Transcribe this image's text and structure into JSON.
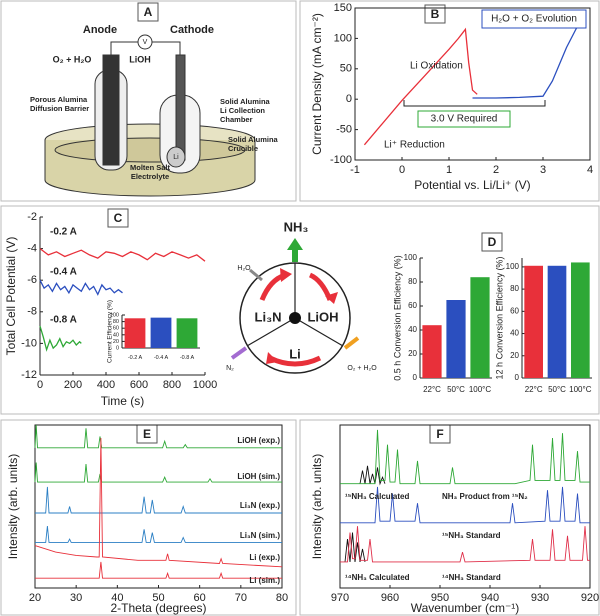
{
  "panel_labels": [
    "A",
    "B",
    "C",
    "D",
    "E",
    "F"
  ],
  "diagram_a": {
    "anode": "Anode",
    "cathode": "Cathode",
    "meter": "V",
    "gas_in": "O₂ + H₂O",
    "product": "LiOH",
    "labels": [
      [
        "Porous Alumina",
        "Diffusion Barrier"
      ],
      [
        "Solid Alumina",
        "Li Collection",
        "Chamber"
      ],
      [
        "Solid Alumina",
        "Crucible"
      ],
      [
        "Molten Salt",
        "Electrolyte"
      ]
    ],
    "li": "Li"
  },
  "cycle": {
    "ammonia": "NH₃",
    "water": "H₂O",
    "nitride": "Li₃N",
    "hydroxide": "LiOH",
    "lithium": "Li",
    "nitrogen": "N₂",
    "evolution": "O₂ + H₂O"
  },
  "chart_data": [
    {
      "type": "line",
      "xlabel": "Potential vs. Li/Li⁺ (V)",
      "ylabel": "Current Density (mA cm⁻²)",
      "xlim": [
        -1,
        4
      ],
      "xticks": [
        -1,
        0,
        1,
        2,
        3,
        4
      ],
      "ylim": [
        -100,
        150
      ],
      "yticks": [
        -100,
        -50,
        0,
        50,
        100,
        150
      ],
      "annotations": [
        "Li Oxidation",
        "H₂O + O₂ Evolution",
        "3.0 V Required",
        "Li⁺ Reduction"
      ],
      "series": [
        {
          "color": "#e8303a",
          "x": [
            -0.8,
            0,
            0.5,
            1.0,
            1.2,
            1.3,
            1.35,
            1.42,
            1.5,
            1.6
          ],
          "values": [
            -75,
            -2,
            40,
            82,
            100,
            110,
            115,
            60,
            15,
            8
          ]
        },
        {
          "color": "#2b4fbf",
          "x": [
            1.5,
            2.0,
            2.5,
            3.0,
            3.2,
            3.5,
            3.9
          ],
          "values": [
            2,
            2,
            3,
            5,
            30,
            85,
            145
          ]
        }
      ]
    },
    {
      "type": "line",
      "xlabel": "Time (s)",
      "ylabel": "Total Cell Potential (V)",
      "xlim": [
        0,
        1000
      ],
      "xticks": [
        0,
        200,
        400,
        600,
        800,
        1000
      ],
      "ylim": [
        -12,
        -2
      ],
      "yticks": [
        -12,
        -10,
        -8,
        -6,
        -4,
        -2
      ],
      "series": [
        {
          "name": "-0.2 A",
          "color": "#e8303a",
          "x": [
            0,
            50,
            100,
            150,
            200,
            250,
            300,
            350,
            400,
            450,
            500,
            550,
            600,
            650,
            700,
            750,
            800,
            850,
            900,
            950,
            1000
          ],
          "values": [
            -4.0,
            -4.4,
            -4.2,
            -4.5,
            -4.3,
            -4.1,
            -4.4,
            -4.6,
            -4.2,
            -4.3,
            -4.5,
            -4.2,
            -4.4,
            -4.7,
            -4.3,
            -4.5,
            -4.2,
            -4.4,
            -4.6,
            -4.4,
            -4.8
          ]
        },
        {
          "name": "-0.4 A",
          "color": "#2b4fbf",
          "x": [
            0,
            25,
            50,
            75,
            100,
            125,
            150,
            175,
            200,
            225,
            250,
            275,
            300,
            325,
            350,
            375,
            400,
            425,
            450,
            475,
            500
          ],
          "values": [
            -6.0,
            -6.5,
            -6.3,
            -6.7,
            -6.2,
            -6.6,
            -6.4,
            -6.8,
            -6.3,
            -6.5,
            -6.7,
            -6.2,
            -6.6,
            -6.4,
            -6.9,
            -6.3,
            -6.6,
            -6.5,
            -6.8,
            -6.6,
            -6.8
          ]
        },
        {
          "name": "-0.8 A",
          "color": "#2ea836",
          "x": [
            0,
            20,
            40,
            60,
            80,
            100,
            120,
            140,
            160,
            180,
            200,
            220,
            240,
            250
          ],
          "values": [
            -8.9,
            -9.6,
            -10.4,
            -9.8,
            -10.3,
            -10.1,
            -9.7,
            -10.2,
            -9.9,
            -10.0,
            -9.8,
            -10.1,
            -9.9,
            -10.0
          ]
        }
      ]
    },
    {
      "type": "bar",
      "ylabel": "Current Efficiency (%)",
      "categories": [
        "-0.2 A",
        "-0.4 A",
        "-0.8 A"
      ],
      "values": [
        90,
        92,
        90
      ],
      "colors": [
        "#e8303a",
        "#2b4fbf",
        "#2ea836"
      ],
      "ylim": [
        0,
        100
      ],
      "yticks": [
        0,
        20,
        40,
        60,
        80,
        100
      ]
    },
    {
      "type": "bar",
      "ylabel": "0.5 h Conversion Efficiency (%)",
      "categories": [
        "22°C",
        "50°C",
        "100°C"
      ],
      "values": [
        44,
        65,
        84
      ],
      "colors": [
        "#e8303a",
        "#2b4fbf",
        "#2ea836"
      ],
      "ylim": [
        0,
        100
      ],
      "yticks": [
        0,
        20,
        40,
        60,
        80,
        100
      ]
    },
    {
      "type": "bar",
      "ylabel": "12 h Conversion Efficiency (%)",
      "categories": [
        "22°C",
        "50°C",
        "100°C"
      ],
      "values": [
        101,
        101,
        104
      ],
      "colors": [
        "#e8303a",
        "#2b4fbf",
        "#2ea836"
      ],
      "ylim": [
        0,
        108
      ],
      "yticks": [
        0,
        20,
        40,
        60,
        80,
        100
      ]
    },
    {
      "type": "line",
      "xlabel": "2-Theta (degrees)",
      "ylabel": "Intensity (arb. units)",
      "xlim": [
        20,
        80
      ],
      "xticks": [
        20,
        30,
        40,
        50,
        60,
        70,
        80
      ],
      "ylim": [
        0,
        100
      ],
      "series": [
        {
          "name": "LiOH (exp.)",
          "color": "#2ea836",
          "x": [
            20,
            20.3,
            20.6,
            32,
            32.4,
            32.8,
            35.4,
            35.8,
            36.2,
            51,
            51.5,
            52,
            56,
            56.5,
            57,
            80
          ],
          "values": [
            86,
            100,
            86,
            86,
            98,
            86,
            86,
            93,
            86,
            86,
            90,
            86,
            86,
            88,
            86,
            86
          ]
        },
        {
          "name": "LiOH (sim.)",
          "color": "#2ea836",
          "x": [
            20,
            20.3,
            20.6,
            32,
            32.4,
            32.8,
            35.4,
            35.8,
            36.2,
            51,
            51.5,
            52,
            62,
            62.5,
            63,
            80
          ],
          "values": [
            65,
            77,
            65,
            65,
            76,
            65,
            65,
            70,
            65,
            65,
            68,
            65,
            65,
            67,
            65,
            65
          ]
        },
        {
          "name": "Li₃N (exp.)",
          "color": "#2b7fc4",
          "x": [
            20,
            22.6,
            23,
            23.4,
            28,
            28.4,
            28.8,
            46,
            46.5,
            47,
            48,
            48.5,
            49,
            55.5,
            56,
            56.5,
            80
          ],
          "values": [
            46,
            46,
            62,
            46,
            46,
            50,
            46,
            46,
            56,
            46,
            46,
            54,
            46,
            46,
            50,
            46,
            46
          ]
        },
        {
          "name": "Li₃N (sim.)",
          "color": "#2b7fc4",
          "x": [
            20,
            22.6,
            23,
            23.4,
            28,
            28.4,
            28.8,
            46,
            46.5,
            47,
            48,
            48.5,
            49,
            55.5,
            56,
            56.5,
            80
          ],
          "values": [
            28,
            28,
            38,
            28,
            28,
            30,
            28,
            28,
            36,
            28,
            28,
            34,
            28,
            28,
            31,
            28,
            28
          ]
        },
        {
          "name": "Li (exp.)",
          "color": "#e8303a",
          "x": [
            20,
            25,
            30,
            35,
            35.6,
            36,
            36.4,
            45,
            51.8,
            52.2,
            52.6,
            64.8,
            65.2,
            65.6,
            80
          ],
          "values": [
            26,
            22,
            20,
            19,
            19,
            92,
            19,
            17,
            17,
            21,
            17,
            15,
            18,
            15,
            13
          ]
        },
        {
          "name": "Li (sim.)",
          "color": "#e8303a",
          "x": [
            20,
            35.6,
            36,
            36.4,
            51.8,
            52.2,
            52.6,
            64.8,
            65.2,
            65.6,
            80
          ],
          "values": [
            6,
            6,
            16,
            6,
            6,
            9,
            6,
            6,
            9,
            6,
            6
          ]
        }
      ]
    },
    {
      "type": "line",
      "xlabel": "Wavenumber (cm⁻¹)",
      "ylabel": "Intensity (arb. units)",
      "xlim": [
        970,
        920
      ],
      "xticks": [
        970,
        960,
        950,
        940,
        930,
        920
      ],
      "ylim": [
        0,
        100
      ],
      "series": [
        {
          "name": "¹⁵NH₃ Calculated",
          "color": "#111111",
          "x": [
            966,
            965.5,
            965,
            964.5,
            964,
            963.5,
            963,
            962.5,
            962,
            961.5,
            961
          ],
          "values": [
            64,
            72,
            64,
            75,
            64,
            70,
            64,
            74,
            64,
            68,
            64
          ]
        },
        {
          "name": "NH₃ Product from ¹⁵N₂",
          "color": "#2ea836",
          "x": [
            970,
            963,
            962.5,
            962,
            961,
            960.5,
            960,
            959,
            958.5,
            958,
            955,
            954.5,
            954,
            948,
            947.5,
            947,
            935,
            932,
            931.5,
            931,
            928,
            927.5,
            927,
            926,
            925.5,
            925,
            923,
            922.5,
            922,
            920
          ],
          "values": [
            64,
            64,
            97,
            66,
            66,
            88,
            65,
            65,
            85,
            64,
            64,
            78,
            64,
            64,
            74,
            64,
            64,
            66,
            88,
            66,
            66,
            92,
            66,
            66,
            95,
            66,
            66,
            84,
            65,
            65
          ]
        },
        {
          "name": "¹⁵NH₃ Standard",
          "color": "#2b4fbf",
          "x": [
            970,
            963,
            962.5,
            962,
            960,
            959.5,
            959,
            955,
            954.5,
            954,
            936,
            935.5,
            935,
            929,
            928.5,
            928,
            926,
            925.5,
            925,
            923,
            922.5,
            922,
            920
          ],
          "values": [
            40,
            40,
            62,
            41,
            41,
            58,
            41,
            41,
            52,
            40,
            40,
            52,
            40,
            41,
            60,
            41,
            41,
            62,
            41,
            41,
            58,
            40,
            40
          ]
        },
        {
          "name": "¹⁴NH₃ Calculated",
          "color": "#111111",
          "x": [
            969,
            968.5,
            968,
            967.5,
            967,
            966.5,
            966,
            965.5,
            965
          ],
          "values": [
            16,
            30,
            16,
            34,
            16,
            28,
            16,
            24,
            16
          ]
        },
        {
          "name": "¹⁴NH₃ Standard",
          "color": "#e0304a",
          "x": [
            970,
            968.5,
            968,
            967.5,
            967,
            966.5,
            966,
            964.5,
            964,
            963.5,
            946,
            945.5,
            945,
            932,
            931.5,
            931,
            928,
            927.5,
            927,
            925,
            924.5,
            924,
            921.5,
            921,
            920.5,
            920
          ],
          "values": [
            16,
            16,
            34,
            18,
            18,
            38,
            17,
            17,
            30,
            16,
            16,
            22,
            16,
            17,
            30,
            17,
            17,
            36,
            17,
            17,
            32,
            17,
            17,
            38,
            17,
            17
          ]
        }
      ]
    }
  ]
}
